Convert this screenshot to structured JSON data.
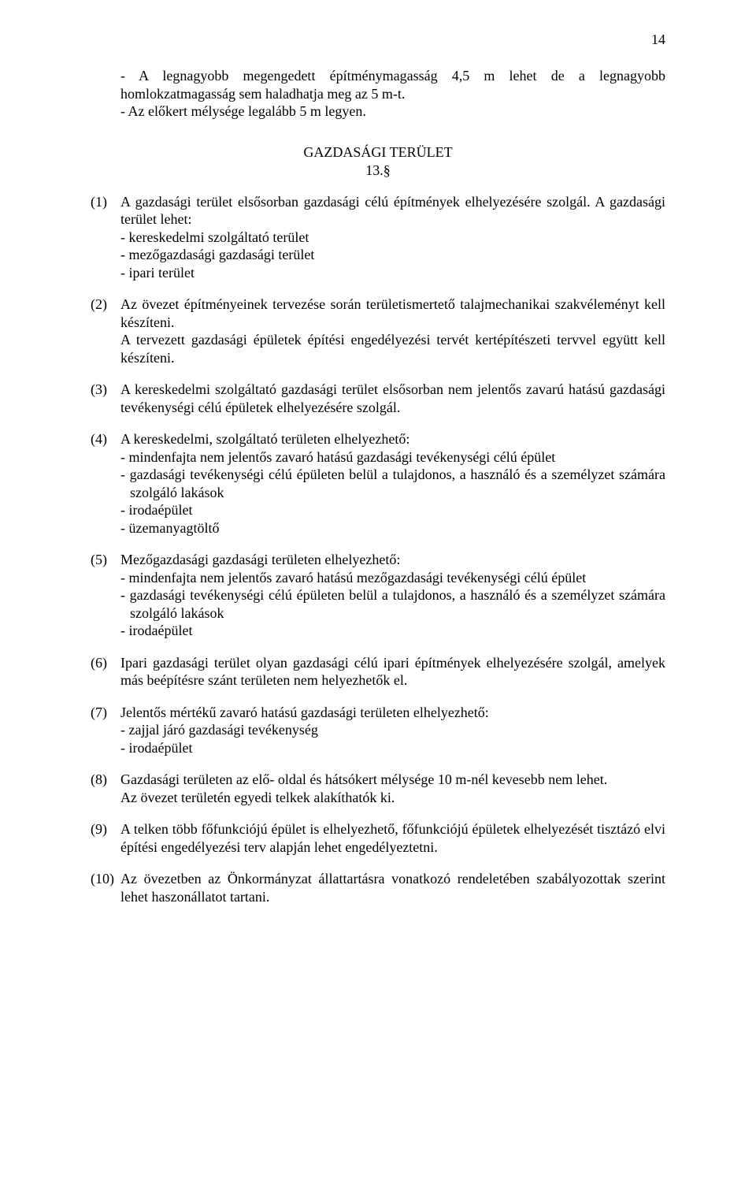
{
  "pageNumber": "14",
  "intro": {
    "line1": "- A legnagyobb megengedett építménymagasság 4,5 m lehet de a legnagyobb homlokzatmagasság sem haladhatja meg az 5 m-t.",
    "line2": "- Az előkert mélysége legalább 5 m legyen."
  },
  "heading": "GAZDASÁGI TERÜLET",
  "headingNum": "13.§",
  "sections": {
    "s1": {
      "num": "(1)",
      "lead": "A gazdasági terület elsősorban gazdasági célú építmények elhelyezésére szolgál. A gazdasági terület lehet:",
      "items": [
        "- kereskedelmi szolgáltató terület",
        "- mezőgazdasági gazdasági terület",
        "- ipari terület"
      ]
    },
    "s2": {
      "num": "(2)",
      "p1": "Az övezet építményeinek tervezése során területismertető talajmechanikai szakvéleményt kell készíteni.",
      "p2": "A tervezett gazdasági épületek építési engedélyezési tervét kertépítészeti tervvel együtt kell készíteni."
    },
    "s3": {
      "num": "(3)",
      "p": "A kereskedelmi szolgáltató gazdasági terület elsősorban nem jelentős zavarú hatású gazdasági tevékenységi célú épületek elhelyezésére szolgál."
    },
    "s4": {
      "num": "(4)",
      "lead": "A kereskedelmi, szolgáltató területen elhelyezhető:",
      "items": [
        "- mindenfajta nem jelentős zavaró hatású gazdasági tevékenységi célú épület",
        "- gazdasági tevékenységi célú épületen belül a tulajdonos, a használó és a személyzet számára szolgáló lakások",
        "- irodaépület",
        "- üzemanyagtöltő"
      ]
    },
    "s5": {
      "num": "(5)",
      "lead": "Mezőgazdasági gazdasági területen elhelyezhető:",
      "items": [
        "- mindenfajta nem jelentős zavaró hatású mezőgazdasági tevékenységi célú épület",
        "- gazdasági tevékenységi célú épületen belül a tulajdonos, a használó és a személyzet számára szolgáló lakások",
        "- irodaépület"
      ]
    },
    "s6": {
      "num": "(6)",
      "p": "Ipari gazdasági terület olyan gazdasági célú ipari építmények elhelyezésére szolgál, amelyek más beépítésre szánt területen nem helyezhetők el."
    },
    "s7": {
      "num": "(7)",
      "lead": "Jelentős mértékű zavaró hatású gazdasági területen elhelyezhető:",
      "items": [
        "- zajjal járó gazdasági tevékenység",
        "- irodaépület"
      ]
    },
    "s8": {
      "num": "(8)",
      "p1": "Gazdasági területen az elő- oldal és hátsókert mélysége 10 m-nél kevesebb nem lehet.",
      "p2": "Az övezet területén egyedi telkek alakíthatók ki."
    },
    "s9": {
      "num": "(9)",
      "p": "A telken több főfunkciójú épület is elhelyezhető, főfunkciójú épületek elhelyezését tisztázó elvi építési engedélyezési terv alapján  lehet engedélyeztetni."
    },
    "s10": {
      "num": "(10)",
      "p": "Az övezetben az Önkormányzat állattartásra vonatkozó rendeletében szabályozottak szerint lehet haszonállatot tartani."
    }
  }
}
